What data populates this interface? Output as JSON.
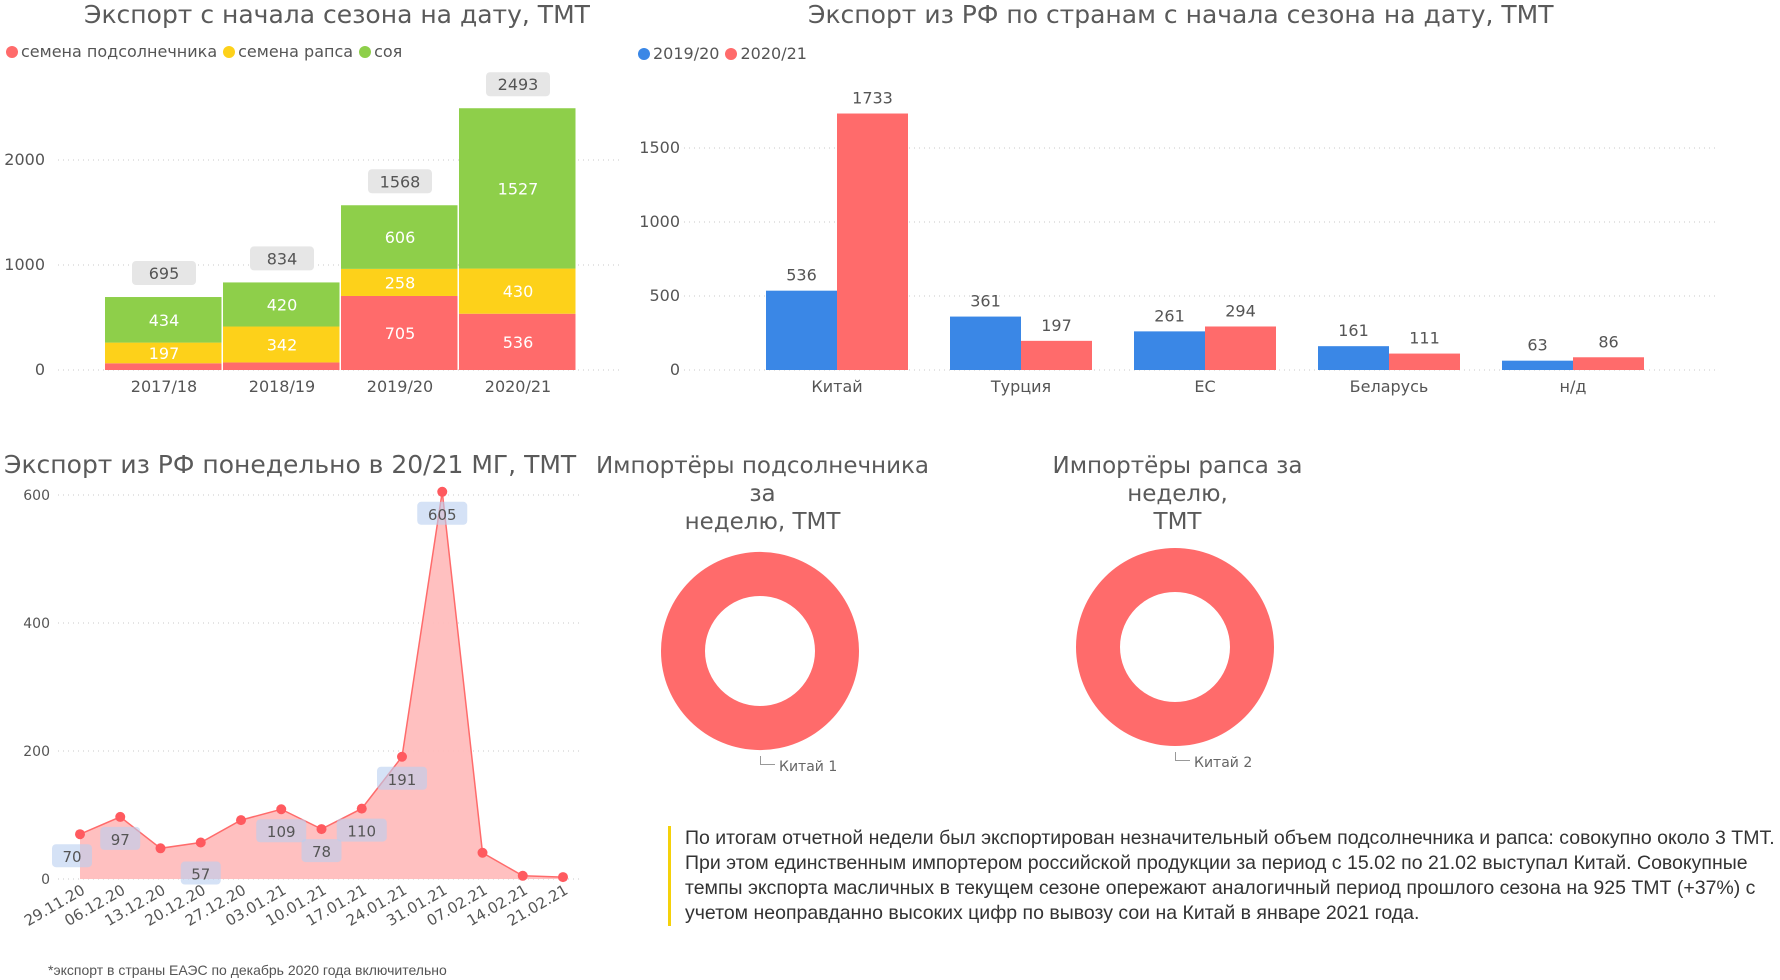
{
  "colors": {
    "sunflower": "#ff6b6b",
    "rapeseed": "#fdd11a",
    "soy": "#8ecf4a",
    "s2019": "#3a87e6",
    "s2020": "#ff6b6b",
    "total_badge": "#e6e6e6",
    "label_badge": "#cfe0f7"
  },
  "chart_data": [
    {
      "id": "season_stacked",
      "type": "bar",
      "stacked": true,
      "title": "Экспорт с начала сезона на дату, ТМТ",
      "categories": [
        "2017/18",
        "2018/19",
        "2019/20",
        "2020/21"
      ],
      "series": [
        {
          "name": "семена подсолнечника",
          "values": [
            64,
            72,
            705,
            536
          ],
          "labels": [
            "",
            "",
            "705",
            "536"
          ]
        },
        {
          "name": "семена рапса",
          "values": [
            197,
            342,
            258,
            430
          ],
          "labels": [
            "197",
            "342",
            "258",
            "430"
          ]
        },
        {
          "name": "соя",
          "values": [
            434,
            420,
            606,
            1527
          ],
          "labels": [
            "434",
            "420",
            "606",
            "1527"
          ]
        }
      ],
      "totals": [
        695,
        834,
        1568,
        2493
      ],
      "yticks": [
        0,
        1000,
        2000
      ],
      "ylim": [
        0,
        2500
      ],
      "grid": true,
      "legend": "top-left"
    },
    {
      "id": "countries_grouped",
      "type": "bar",
      "stacked": false,
      "title": "Экспорт из РФ по странам с начала сезона на дату, ТМТ",
      "categories": [
        "Китай",
        "Турция",
        "ЕС",
        "Беларусь",
        "н/д"
      ],
      "series": [
        {
          "name": "2019/20",
          "values": [
            536,
            361,
            261,
            161,
            63
          ]
        },
        {
          "name": "2020/21",
          "values": [
            1733,
            197,
            294,
            111,
            86
          ]
        }
      ],
      "yticks": [
        0,
        500,
        1000,
        1500
      ],
      "ylim": [
        0,
        1800
      ],
      "grid": true,
      "legend": "top-left"
    },
    {
      "id": "weekly_area",
      "type": "area",
      "title": "Экспорт из РФ понедельно в 20/21 МГ, ТМТ",
      "x": [
        "29.11.20",
        "06.12.20",
        "13.12.20",
        "20.12.20",
        "27.12.20",
        "03.01.21",
        "10.01.21",
        "17.01.21",
        "24.01.21",
        "31.01.21",
        "07.02.21",
        "14.02.21",
        "21.02.21"
      ],
      "values": [
        70,
        97,
        48,
        57,
        92,
        109,
        78,
        110,
        191,
        605,
        41,
        5,
        3
      ],
      "labels": [
        "70",
        "97",
        "",
        "57",
        "",
        "109",
        "78",
        "110",
        "191",
        "605",
        "",
        "",
        ""
      ],
      "yticks": [
        0,
        200,
        400,
        600
      ],
      "ylim": [
        0,
        600
      ],
      "grid": true
    },
    {
      "id": "sunflower_importers",
      "type": "pie",
      "donut": true,
      "title": "Импортёры подсолнечника за неделю, ТМТ",
      "slices": [
        {
          "label": "Китай",
          "value": 1
        }
      ]
    },
    {
      "id": "rapeseed_importers",
      "type": "pie",
      "donut": true,
      "title": "Импортёры рапса за неделю, ТМТ",
      "slices": [
        {
          "label": "Китай",
          "value": 2
        }
      ]
    }
  ],
  "titles": {
    "season": "Экспорт с начала сезона на дату, ТМТ",
    "countries": "Экспорт из РФ по странам с начала сезона на дату, ТМТ",
    "weekly": "Экспорт из РФ понедельно в 20/21 МГ, ТМТ",
    "donut1_line1": "Импортёры подсолнечника за",
    "donut1_line2": "неделю, ТМТ",
    "donut2_line1": "Импортёры рапса за неделю,",
    "donut2_line2": "ТМТ"
  },
  "legends": {
    "season": [
      "семена подсолнечника",
      "семена рапса",
      "соя"
    ],
    "countries": [
      "2019/20",
      "2020/21"
    ]
  },
  "donut_labels": {
    "d1": "Китай 1",
    "d2": "Китай 2"
  },
  "footnote": "*экспорт в страны ЕАЭС по декабрь 2020 года включительно",
  "comment": "По итогам отчетной недели был экспортирован незначительный объем подсолнечника и рапса: совокупно около 3 ТМТ. При этом единственным импортером российской продукции за период с 15.02 по 21.02 выступал Китай. Совокупные темпы экспорта масличных в текущем сезоне опережают аналогичный период прошлого сезона на 925 ТМТ (+37%) с учетом неоправданно высоких цифр по вывозу сои на Китай в январе 2021 года."
}
